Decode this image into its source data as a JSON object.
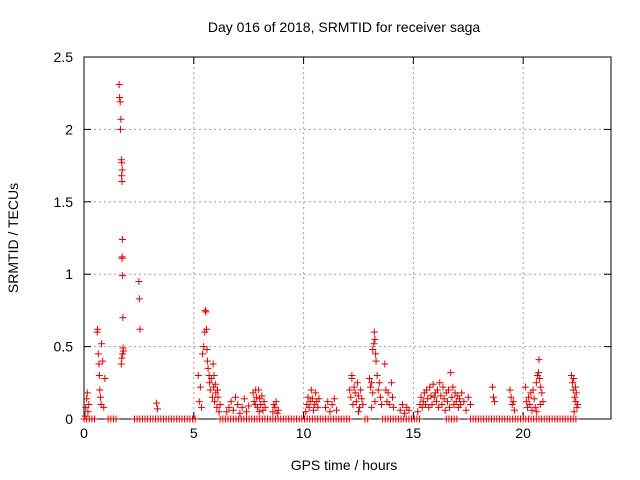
{
  "chart_data": {
    "type": "scatter",
    "title": "Day 016 of 2018, SRMTID for receiver saga",
    "xlabel": "GPS time / hours",
    "ylabel": "SRMTID / TECUs",
    "xlim": [
      0,
      24
    ],
    "ylim": [
      0,
      2.5
    ],
    "x_ticks": [
      0,
      5,
      10,
      15,
      20
    ],
    "x_tick_labels": [
      "0",
      "5",
      "10",
      "15",
      "20"
    ],
    "y_ticks": [
      0,
      0.5,
      1,
      1.5,
      2,
      2.5
    ],
    "y_tick_labels": [
      "0",
      "0.5",
      "1",
      "1.5",
      "2",
      "2.5"
    ],
    "grid": true,
    "series": [
      {
        "name": "SRMTID",
        "marker": "+",
        "color": "#e00000",
        "points": [
          [
            0.05,
            0.02
          ],
          [
            0.08,
            0.08
          ],
          [
            0.12,
            0.14
          ],
          [
            0.15,
            0.18
          ],
          [
            0.18,
            0.05
          ],
          [
            0.22,
            0.1
          ],
          [
            0.6,
            0.6
          ],
          [
            0.62,
            0.62
          ],
          [
            0.65,
            0.45
          ],
          [
            0.68,
            0.38
          ],
          [
            0.7,
            0.3
          ],
          [
            0.72,
            0.2
          ],
          [
            0.75,
            0.15
          ],
          [
            0.78,
            0.1
          ],
          [
            0.8,
            0.52
          ],
          [
            0.85,
            0.4
          ],
          [
            0.9,
            0.08
          ],
          [
            0.95,
            0.28
          ],
          [
            1.6,
            2.31
          ],
          [
            1.62,
            2.22
          ],
          [
            1.65,
            2.19
          ],
          [
            1.68,
            2.07
          ],
          [
            1.66,
            2.0
          ],
          [
            1.7,
            1.79
          ],
          [
            1.72,
            1.77
          ],
          [
            1.74,
            1.72
          ],
          [
            1.71,
            1.68
          ],
          [
            1.73,
            1.64
          ],
          [
            1.75,
            1.24
          ],
          [
            1.74,
            1.12
          ],
          [
            1.73,
            1.11
          ],
          [
            1.76,
            0.99
          ],
          [
            1.77,
            0.7
          ],
          [
            1.78,
            0.49
          ],
          [
            1.8,
            0.47
          ],
          [
            1.76,
            0.45
          ],
          [
            1.72,
            0.42
          ],
          [
            1.7,
            0.38
          ],
          [
            2.5,
            0.95
          ],
          [
            2.52,
            0.83
          ],
          [
            2.55,
            0.62
          ],
          [
            3.3,
            0.11
          ],
          [
            3.35,
            0.07
          ],
          [
            5.2,
            0.3
          ],
          [
            5.25,
            0.12
          ],
          [
            5.3,
            0.22
          ],
          [
            5.35,
            0.08
          ],
          [
            5.4,
            0.45
          ],
          [
            5.45,
            0.5
          ],
          [
            5.5,
            0.6
          ],
          [
            5.52,
            0.75
          ],
          [
            5.55,
            0.74
          ],
          [
            5.58,
            0.62
          ],
          [
            5.6,
            0.48
          ],
          [
            5.62,
            0.4
          ],
          [
            5.65,
            0.35
          ],
          [
            5.7,
            0.3
          ],
          [
            5.72,
            0.25
          ],
          [
            5.75,
            0.2
          ],
          [
            5.8,
            0.28
          ],
          [
            5.85,
            0.15
          ],
          [
            5.9,
            0.22
          ],
          [
            5.95,
            0.12
          ],
          [
            6.0,
            0.18
          ],
          [
            6.05,
            0.08
          ],
          [
            6.1,
            0.15
          ],
          [
            6.15,
            0.05
          ],
          [
            6.2,
            0.1
          ],
          [
            5.88,
            0.38
          ],
          [
            5.92,
            0.3
          ],
          [
            5.98,
            0.24
          ],
          [
            6.08,
            0.2
          ],
          [
            6.5,
            0.05
          ],
          [
            6.6,
            0.08
          ],
          [
            6.7,
            0.12
          ],
          [
            6.8,
            0.06
          ],
          [
            6.9,
            0.15
          ],
          [
            7.0,
            0.1
          ],
          [
            7.1,
            0.04
          ],
          [
            7.2,
            0.08
          ],
          [
            7.3,
            0.14
          ],
          [
            7.4,
            0.05
          ],
          [
            7.5,
            0.09
          ],
          [
            7.7,
            0.18
          ],
          [
            7.75,
            0.12
          ],
          [
            7.8,
            0.1
          ],
          [
            7.85,
            0.15
          ],
          [
            7.9,
            0.08
          ],
          [
            7.95,
            0.2
          ],
          [
            8.0,
            0.14
          ],
          [
            8.05,
            0.1
          ],
          [
            8.1,
            0.16
          ],
          [
            8.15,
            0.06
          ],
          [
            8.2,
            0.12
          ],
          [
            8.25,
            0.08
          ],
          [
            7.82,
            0.2
          ],
          [
            7.98,
            0.05
          ],
          [
            8.6,
            0.05
          ],
          [
            8.65,
            0.1
          ],
          [
            8.7,
            0.08
          ],
          [
            8.75,
            0.12
          ],
          [
            8.8,
            0.04
          ],
          [
            8.85,
            0.06
          ],
          [
            10.1,
            0.05
          ],
          [
            10.15,
            0.1
          ],
          [
            10.2,
            0.15
          ],
          [
            10.25,
            0.08
          ],
          [
            10.3,
            0.12
          ],
          [
            10.35,
            0.2
          ],
          [
            10.4,
            0.14
          ],
          [
            10.45,
            0.06
          ],
          [
            10.5,
            0.1
          ],
          [
            10.55,
            0.18
          ],
          [
            10.6,
            0.12
          ],
          [
            10.65,
            0.08
          ],
          [
            10.7,
            0.14
          ],
          [
            11.0,
            0.08
          ],
          [
            11.1,
            0.12
          ],
          [
            11.2,
            0.05
          ],
          [
            11.3,
            0.1
          ],
          [
            11.4,
            0.14
          ],
          [
            11.5,
            0.06
          ],
          [
            12.1,
            0.2
          ],
          [
            12.15,
            0.15
          ],
          [
            12.2,
            0.28
          ],
          [
            12.25,
            0.1
          ],
          [
            12.3,
            0.22
          ],
          [
            12.35,
            0.18
          ],
          [
            12.4,
            0.12
          ],
          [
            12.45,
            0.25
          ],
          [
            12.5,
            0.16
          ],
          [
            12.55,
            0.08
          ],
          [
            12.6,
            0.2
          ],
          [
            12.65,
            0.14
          ],
          [
            12.7,
            0.1
          ],
          [
            12.2,
            0.3
          ],
          [
            12.5,
            0.05
          ],
          [
            13.0,
            0.28
          ],
          [
            13.05,
            0.22
          ],
          [
            13.1,
            0.25
          ],
          [
            13.15,
            0.48
          ],
          [
            13.2,
            0.52
          ],
          [
            13.22,
            0.6
          ],
          [
            13.25,
            0.55
          ],
          [
            13.28,
            0.45
          ],
          [
            13.3,
            0.4
          ],
          [
            13.35,
            0.3
          ],
          [
            13.4,
            0.2
          ],
          [
            13.45,
            0.25
          ],
          [
            13.5,
            0.15
          ],
          [
            13.55,
            0.1
          ],
          [
            13.15,
            0.18
          ],
          [
            13.25,
            0.12
          ],
          [
            13.1,
            0.08
          ],
          [
            13.7,
            0.38
          ],
          [
            13.75,
            0.2
          ],
          [
            13.8,
            0.12
          ],
          [
            13.85,
            0.18
          ],
          [
            13.9,
            0.1
          ],
          [
            14.0,
            0.25
          ],
          [
            14.05,
            0.15
          ],
          [
            14.1,
            0.08
          ],
          [
            14.4,
            0.06
          ],
          [
            14.5,
            0.1
          ],
          [
            14.6,
            0.04
          ],
          [
            14.7,
            0.08
          ],
          [
            14.8,
            0.06
          ],
          [
            15.2,
            0.05
          ],
          [
            15.3,
            0.1
          ],
          [
            15.35,
            0.15
          ],
          [
            15.4,
            0.08
          ],
          [
            15.45,
            0.12
          ],
          [
            15.5,
            0.18
          ],
          [
            15.55,
            0.1
          ],
          [
            15.6,
            0.2
          ],
          [
            15.65,
            0.14
          ],
          [
            15.7,
            0.08
          ],
          [
            15.75,
            0.22
          ],
          [
            15.8,
            0.16
          ],
          [
            15.85,
            0.1
          ],
          [
            15.9,
            0.24
          ],
          [
            15.95,
            0.15
          ],
          [
            16.0,
            0.18
          ],
          [
            16.05,
            0.12
          ],
          [
            16.1,
            0.2
          ],
          [
            16.15,
            0.08
          ],
          [
            16.2,
            0.25
          ],
          [
            16.25,
            0.16
          ],
          [
            16.3,
            0.1
          ],
          [
            16.35,
            0.22
          ],
          [
            16.4,
            0.14
          ],
          [
            16.45,
            0.06
          ],
          [
            16.5,
            0.18
          ],
          [
            16.55,
            0.12
          ],
          [
            16.6,
            0.2
          ],
          [
            16.65,
            0.08
          ],
          [
            16.7,
            0.32
          ],
          [
            16.75,
            0.15
          ],
          [
            16.8,
            0.22
          ],
          [
            16.85,
            0.1
          ],
          [
            16.9,
            0.18
          ],
          [
            16.95,
            0.12
          ],
          [
            17.0,
            0.16
          ],
          [
            17.05,
            0.08
          ],
          [
            17.1,
            0.14
          ],
          [
            17.15,
            0.1
          ],
          [
            17.2,
            0.18
          ],
          [
            17.3,
            0.12
          ],
          [
            17.4,
            0.06
          ],
          [
            17.5,
            0.15
          ],
          [
            17.6,
            0.1
          ],
          [
            18.6,
            0.22
          ],
          [
            18.65,
            0.15
          ],
          [
            18.7,
            0.12
          ],
          [
            19.4,
            0.2
          ],
          [
            19.45,
            0.15
          ],
          [
            19.5,
            0.1
          ],
          [
            19.55,
            0.12
          ],
          [
            19.6,
            0.06
          ],
          [
            20.1,
            0.22
          ],
          [
            20.15,
            0.12
          ],
          [
            20.2,
            0.08
          ],
          [
            20.25,
            0.15
          ],
          [
            20.3,
            0.1
          ],
          [
            20.35,
            0.18
          ],
          [
            20.4,
            0.06
          ],
          [
            20.45,
            0.2
          ],
          [
            20.5,
            0.14
          ],
          [
            20.55,
            0.08
          ],
          [
            20.6,
            0.25
          ],
          [
            20.65,
            0.3
          ],
          [
            20.7,
            0.32
          ],
          [
            20.72,
            0.41
          ],
          [
            20.75,
            0.28
          ],
          [
            20.8,
            0.22
          ],
          [
            20.85,
            0.18
          ],
          [
            20.9,
            0.12
          ],
          [
            20.62,
            0.05
          ],
          [
            20.78,
            0.1
          ],
          [
            22.2,
            0.3
          ],
          [
            22.25,
            0.25
          ],
          [
            22.28,
            0.2
          ],
          [
            22.3,
            0.28
          ],
          [
            22.35,
            0.15
          ],
          [
            22.38,
            0.22
          ],
          [
            22.4,
            0.12
          ],
          [
            22.42,
            0.18
          ],
          [
            22.45,
            0.08
          ],
          [
            22.48,
            0.1
          ],
          [
            22.32,
            0.05
          ]
        ],
        "zero_ranges": [
          [
            0.0,
            0.5
          ],
          [
            1.1,
            1.5
          ],
          [
            2.3,
            5.1
          ],
          [
            6.2,
            12.1
          ],
          [
            12.8,
            13.0
          ],
          [
            13.6,
            15.3
          ],
          [
            16.5,
            17.0
          ],
          [
            17.6,
            22.5
          ]
        ]
      }
    ]
  }
}
